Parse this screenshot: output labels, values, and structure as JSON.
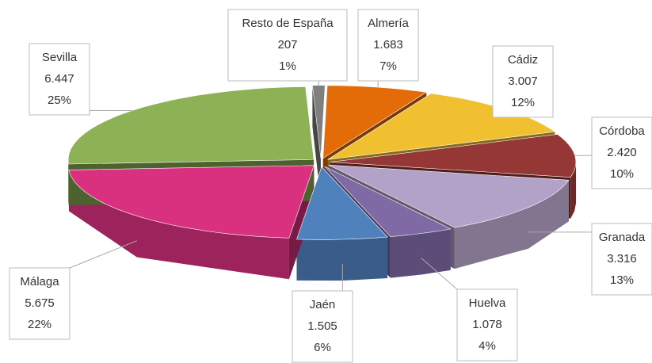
{
  "chart_data": {
    "type": "pie3d",
    "categories": [
      "Almería",
      "Cádiz",
      "Córdoba",
      "Granada",
      "Huelva",
      "Jaén",
      "Málaga",
      "Sevilla",
      "Resto de España"
    ],
    "values": [
      1683,
      3007,
      2420,
      3316,
      1078,
      1505,
      5675,
      6447,
      207
    ],
    "value_labels": [
      "1.683",
      "3.007",
      "2.420",
      "3.316",
      "1.078",
      "1.505",
      "5.675",
      "6.447",
      "207"
    ],
    "percentages": [
      7,
      12,
      10,
      13,
      4,
      6,
      22,
      25,
      1
    ],
    "percentage_labels": [
      "7%",
      "12%",
      "10%",
      "13%",
      "4%",
      "6%",
      "22%",
      "25%",
      "1%"
    ],
    "colors": [
      "#e36c09",
      "#f0c030",
      "#953735",
      "#b3a2c7",
      "#7f6aa6",
      "#4f81bd",
      "#d9307f",
      "#8db255",
      "#7f7f7f"
    ]
  }
}
